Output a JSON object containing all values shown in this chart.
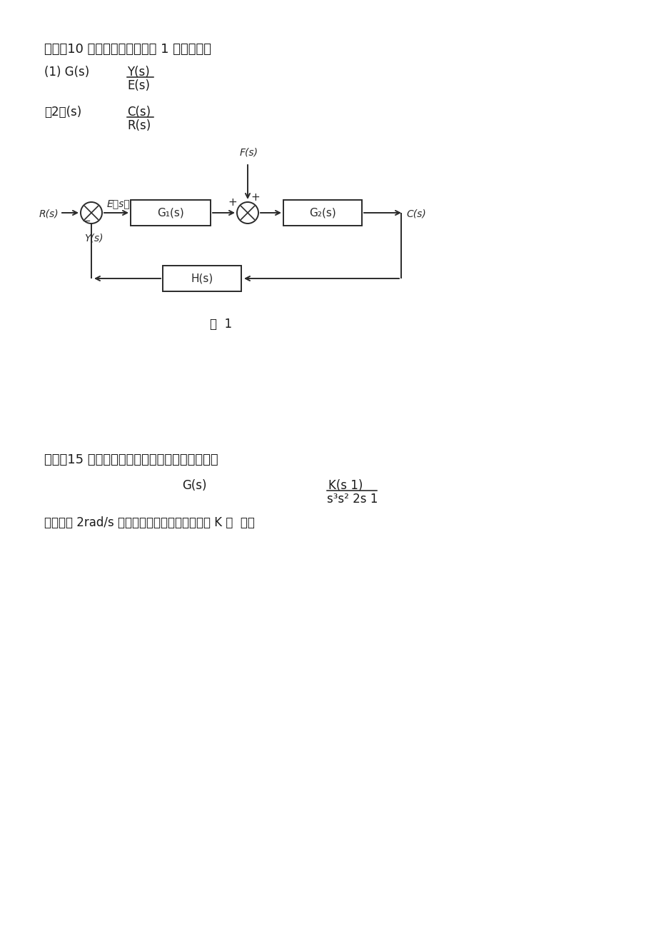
{
  "bg_color": "#ffffff",
  "text_color": "#1a1a1a",
  "diagram_color": "#2a2a2a",
  "fig_width": 9.2,
  "fig_height": 13.01,
  "section3_title": "三、（10 分）系统结构图如图 1 所示。求：",
  "s3_q1_prefix": "(1) G(s)",
  "s3_q1_num": "Y(s)",
  "s3_q1_den": "E(s)",
  "s3_q2_prefix": "（2）(s)",
  "s3_q2_num": "C(s)",
  "s3_q2_den": "R(s)",
  "fig_caption": "图  1",
  "section4_title": "四、（15 分）设单位反馈系统的开环传递函数为",
  "s4_gs_label": "G(s)",
  "s4_num": "K(s 1)",
  "s4_den": "s³s² 2s 1",
  "s4_text": "若系统以 2rad/s 频率持续振荡，试确定相应的 K 和  値。"
}
